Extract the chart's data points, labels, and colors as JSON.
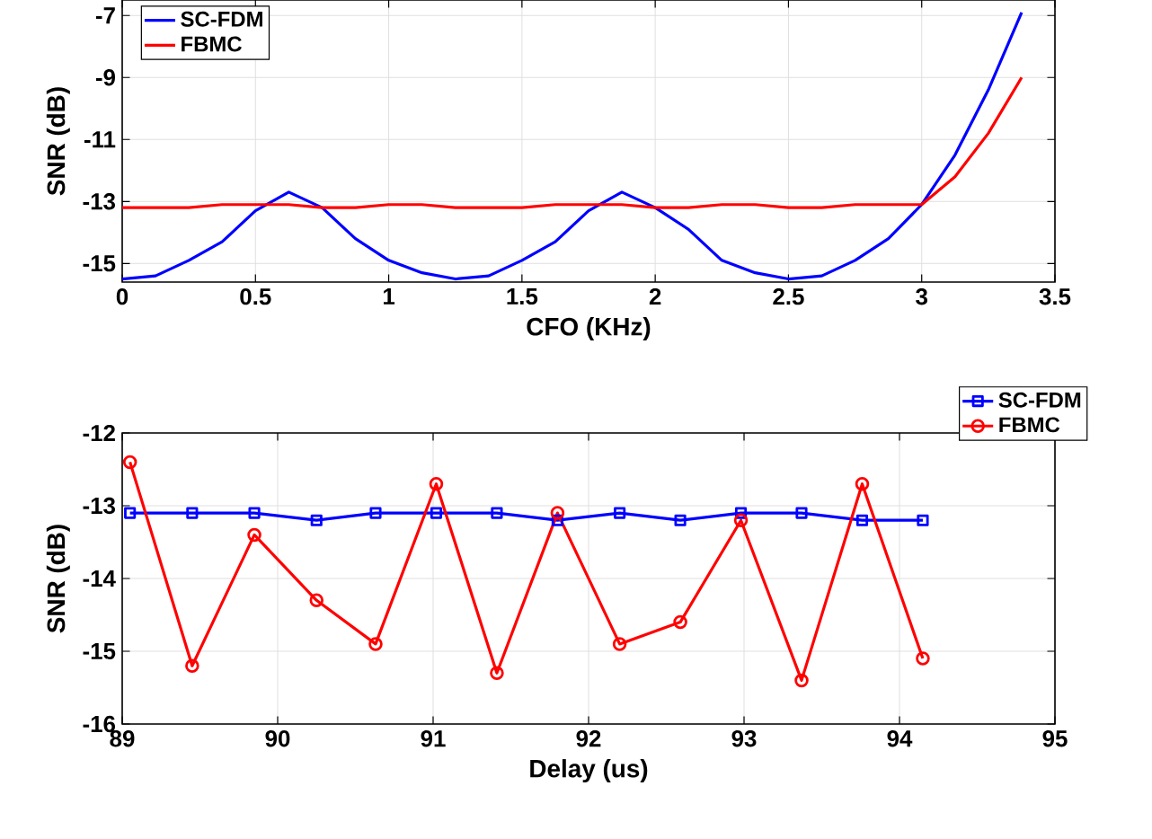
{
  "chart_data": [
    {
      "type": "line",
      "xlabel": "CFO (KHz)",
      "ylabel": "SNR (dB)",
      "xlim": [
        0,
        3.5
      ],
      "ylim": [
        -15.6,
        -6.5
      ],
      "xticks": [
        0,
        0.5,
        1,
        1.5,
        2,
        2.5,
        3,
        3.5
      ],
      "yticks": [
        -15,
        -13,
        -11,
        -9,
        -7
      ],
      "grid": true,
      "legend": "top left",
      "series": [
        {
          "name": "SC-FDM",
          "color": "#0000ff",
          "x": [
            0,
            0.125,
            0.25,
            0.375,
            0.5,
            0.625,
            0.75,
            0.875,
            1,
            1.125,
            1.25,
            1.375,
            1.5,
            1.625,
            1.75,
            1.875,
            2,
            2.125,
            2.25,
            2.375,
            2.5,
            2.625,
            2.75,
            2.875,
            3,
            3.125,
            3.25,
            3.375
          ],
          "values": [
            -15.5,
            -15.4,
            -14.9,
            -14.3,
            -13.3,
            -12.7,
            -13.2,
            -14.2,
            -14.9,
            -15.3,
            -15.5,
            -15.4,
            -14.9,
            -14.3,
            -13.3,
            -12.7,
            -13.2,
            -13.9,
            -14.9,
            -15.3,
            -15.5,
            -15.4,
            -14.9,
            -14.2,
            -13.1,
            -11.5,
            -9.4,
            -6.9
          ]
        },
        {
          "name": "FBMC",
          "color": "#ff0000",
          "x": [
            0,
            0.125,
            0.25,
            0.375,
            0.5,
            0.625,
            0.75,
            0.875,
            1,
            1.125,
            1.25,
            1.375,
            1.5,
            1.625,
            1.75,
            1.875,
            2,
            2.125,
            2.25,
            2.375,
            2.5,
            2.625,
            2.75,
            2.875,
            3,
            3.125,
            3.25,
            3.375
          ],
          "values": [
            -13.2,
            -13.2,
            -13.2,
            -13.1,
            -13.1,
            -13.1,
            -13.2,
            -13.2,
            -13.1,
            -13.1,
            -13.2,
            -13.2,
            -13.2,
            -13.1,
            -13.1,
            -13.1,
            -13.2,
            -13.2,
            -13.1,
            -13.1,
            -13.2,
            -13.2,
            -13.1,
            -13.1,
            -13.1,
            -12.2,
            -10.8,
            -9.0
          ]
        }
      ]
    },
    {
      "type": "line",
      "xlabel": "Delay (us)",
      "ylabel": "SNR (dB)",
      "xlim": [
        89,
        95
      ],
      "ylim": [
        -16,
        -12
      ],
      "xticks": [
        89,
        90,
        91,
        92,
        93,
        94,
        95
      ],
      "yticks": [
        -16,
        -15,
        -14,
        -13,
        -12
      ],
      "grid": true,
      "legend": "top right",
      "series": [
        {
          "name": "SC-FDM",
          "color": "#0000ff",
          "marker": "square",
          "x": [
            89.05,
            89.45,
            89.85,
            90.25,
            90.63,
            91.02,
            91.41,
            91.8,
            92.2,
            92.59,
            92.98,
            93.37,
            93.76,
            94.15
          ],
          "values": [
            -13.1,
            -13.1,
            -13.1,
            -13.2,
            -13.1,
            -13.1,
            -13.1,
            -13.2,
            -13.1,
            -13.2,
            -13.1,
            -13.1,
            -13.2,
            -13.2
          ]
        },
        {
          "name": "FBMC",
          "color": "#ff0000",
          "marker": "circle",
          "x": [
            89.05,
            89.45,
            89.85,
            90.25,
            90.63,
            91.02,
            91.41,
            91.8,
            92.2,
            92.59,
            92.98,
            93.37,
            93.76,
            94.15
          ],
          "values": [
            -12.4,
            -15.2,
            -13.4,
            -14.3,
            -14.9,
            -12.7,
            -15.3,
            -13.1,
            -14.9,
            -14.6,
            -13.2,
            -15.4,
            -12.7,
            -15.1
          ]
        }
      ]
    }
  ]
}
